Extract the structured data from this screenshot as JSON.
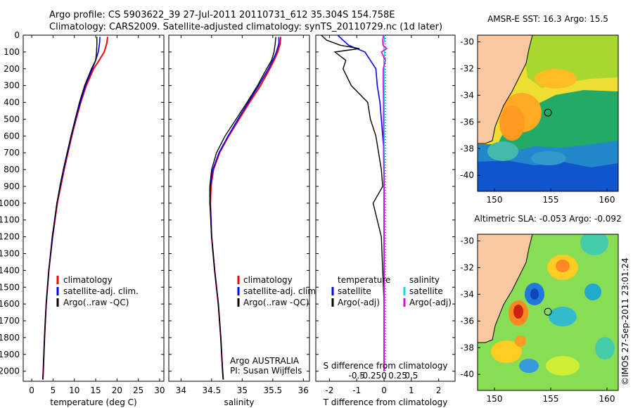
{
  "header": {
    "line1": "Argo profile: CS 5903622_39 27-Jul-2011 20110731_612 35.304S 154.758E",
    "line2": "Climatology: CARS2009. Satellite-adjusted climatology: synTS_20110729.nc (1d later)"
  },
  "colors": {
    "climatology": "#ff0000",
    "satellite": "#0000ff",
    "argo": "#000000",
    "satellite_salinity": "#00e0e0",
    "argo_salinity": "#e000e0",
    "land": "#f8c8a0"
  },
  "chart_data": [
    {
      "type": "line",
      "panel": "temperature",
      "xlabel": "temperature (deg C)",
      "ylabel": "",
      "xlim": [
        -2,
        31
      ],
      "ylim": [
        2060,
        0
      ],
      "xticks": [
        "0",
        "5",
        "10",
        "15",
        "20",
        "25",
        "30"
      ],
      "yticks": [
        "0",
        "100",
        "200",
        "300",
        "400",
        "500",
        "600",
        "700",
        "800",
        "900",
        "1000",
        "1100",
        "1200",
        "1300",
        "1400",
        "1500",
        "1600",
        "1700",
        "1800",
        "1900",
        "2000"
      ],
      "legend": [
        "climatology",
        "satellite-adj. clim.",
        "Argo(..raw -QC)"
      ],
      "depth": [
        10,
        50,
        100,
        150,
        200,
        300,
        400,
        500,
        600,
        700,
        800,
        900,
        1000,
        1200,
        1400,
        1600,
        1800,
        2000,
        2050
      ],
      "series": [
        {
          "name": "climatology",
          "values": [
            17.8,
            17.6,
            17.0,
            15.8,
            14.5,
            12.8,
            11.5,
            10.4,
            9.4,
            8.5,
            7.6,
            6.8,
            6.0,
            4.9,
            4.0,
            3.4,
            3.0,
            2.7,
            2.6
          ]
        },
        {
          "name": "satellite-adj. clim.",
          "values": [
            16.0,
            15.9,
            15.6,
            15.0,
            14.2,
            12.6,
            11.4,
            10.3,
            9.3,
            8.4,
            7.5,
            6.7,
            5.9,
            4.9,
            4.0,
            3.4,
            3.0,
            2.7,
            2.6
          ]
        },
        {
          "name": "Argo(..raw -QC)",
          "values": [
            15.3,
            15.3,
            15.2,
            15.0,
            14.0,
            12.4,
            11.2,
            10.2,
            9.2,
            8.3,
            7.4,
            6.6,
            5.9,
            4.8,
            4.0,
            3.4,
            3.0,
            2.7,
            2.6
          ]
        }
      ]
    },
    {
      "type": "line",
      "panel": "salinity",
      "xlabel": "salinity",
      "xlim": [
        33.8,
        36.1
      ],
      "ylim": [
        2060,
        0
      ],
      "xticks": [
        "34",
        "34.5",
        "35",
        "35.5",
        "36"
      ],
      "legend": [
        "climatology",
        "satellite-adj. clim.",
        "Argo(..raw -QC)"
      ],
      "annotation": [
        "Argo AUSTRALIA",
        "PI: Susan Wijffels"
      ],
      "depth": [
        10,
        50,
        100,
        150,
        200,
        300,
        400,
        500,
        600,
        700,
        800,
        900,
        1000,
        1200,
        1400,
        1600,
        1800,
        2000,
        2050
      ],
      "series": [
        {
          "name": "climatology",
          "values": [
            35.63,
            35.62,
            35.58,
            35.52,
            35.45,
            35.3,
            35.12,
            34.95,
            34.78,
            34.63,
            34.53,
            34.49,
            34.48,
            34.5,
            34.55,
            34.61,
            34.65,
            34.68,
            34.69
          ]
        },
        {
          "name": "satellite-adj. clim.",
          "values": [
            35.6,
            35.6,
            35.56,
            35.5,
            35.43,
            35.27,
            35.1,
            34.93,
            34.77,
            34.62,
            34.52,
            34.48,
            34.48,
            34.5,
            34.55,
            34.61,
            34.65,
            34.68,
            34.69
          ]
        },
        {
          "name": "Argo(..raw -QC)",
          "values": [
            35.55,
            35.54,
            35.52,
            35.48,
            35.4,
            35.25,
            35.08,
            34.9,
            34.72,
            34.58,
            34.5,
            34.47,
            34.47,
            34.5,
            34.55,
            34.61,
            34.65,
            34.68,
            34.69
          ]
        }
      ]
    },
    {
      "type": "line",
      "panel": "difference",
      "xlabel": "T difference from climatology",
      "xlabel_top": "S difference from climatology",
      "xlim": [
        -2.5,
        2.6
      ],
      "ylim": [
        2060,
        0
      ],
      "xticks": [
        "-2",
        "-1",
        "0",
        "1",
        "2"
      ],
      "xticks_salinity": [
        "-0.5",
        "-0.25",
        "0",
        "0.25",
        "0.5"
      ],
      "legend_headers": [
        "temperature",
        "salinity"
      ],
      "legend_temperature": [
        "satellite",
        "Argo(-adj)"
      ],
      "legend_salinity": [
        "satellite",
        "Argo(-adj)"
      ],
      "depth": [
        0,
        30,
        60,
        80,
        100,
        150,
        200,
        300,
        400,
        500,
        600,
        700,
        800,
        900,
        1000,
        1200,
        1400,
        1600,
        1800,
        2000
      ],
      "series": [
        {
          "name": "temperature satellite",
          "values": [
            -1.7,
            -1.5,
            -1.3,
            -1.0,
            -0.7,
            -0.5,
            -0.3,
            -0.25,
            -0.15,
            -0.1,
            -0.05,
            0.0,
            0.0,
            0.0,
            0.0,
            0.0,
            0.0,
            0.0,
            0.0,
            0.0
          ]
        },
        {
          "name": "temperature Argo(-adj)",
          "values": [
            -2.3,
            -2.1,
            -1.6,
            -0.9,
            -1.8,
            -1.4,
            -1.5,
            -1.2,
            -0.6,
            -0.5,
            -0.3,
            -0.2,
            -0.1,
            -0.05,
            -0.4,
            -0.1,
            -0.05,
            0.0,
            0.0,
            0.0
          ]
        },
        {
          "name": "salinity satellite",
          "values": [
            0.0,
            0.01,
            -0.02,
            0.0,
            0.02,
            -0.01,
            0.0,
            0.0,
            0.0,
            0.0,
            0.0,
            0.0,
            0.0,
            0.0,
            0.0,
            0.0,
            0.0,
            0.0,
            0.0,
            0.0
          ]
        },
        {
          "name": "salinity Argo(-adj)",
          "values": [
            -0.02,
            -0.05,
            -0.04,
            0.1,
            -0.1,
            0.05,
            -0.03,
            -0.03,
            -0.02,
            -0.02,
            -0.02,
            -0.02,
            -0.01,
            0.0,
            0.0,
            0.0,
            0.0,
            0.0,
            0.0,
            0.0
          ]
        }
      ]
    },
    {
      "type": "heatmap",
      "panel": "sst_map",
      "title": "AMSR-E SST: 16.3 Argo: 15.5",
      "xlim": [
        148.5,
        161
      ],
      "ylim": [
        -41.2,
        -29.5
      ],
      "xticks": [
        "150",
        "155",
        "160"
      ],
      "yticks": [
        "-30",
        "-32",
        "-34",
        "-36",
        "-38",
        "-40"
      ],
      "marker": {
        "lon": 154.758,
        "lat": -35.304
      }
    },
    {
      "type": "heatmap",
      "panel": "sla_map",
      "title": "Altimetric SLA: -0.053 Argo: -0.092",
      "xlim": [
        148.5,
        161
      ],
      "ylim": [
        -41.2,
        -29.5
      ],
      "xticks": [
        "150",
        "155",
        "160"
      ],
      "yticks": [
        "-30",
        "-32",
        "-34",
        "-36",
        "-38",
        "-40"
      ],
      "marker": {
        "lon": 154.758,
        "lat": -35.304
      }
    }
  ],
  "footer": {
    "stamp": "©IMOS 27-Sep-2011 23:01:24"
  }
}
